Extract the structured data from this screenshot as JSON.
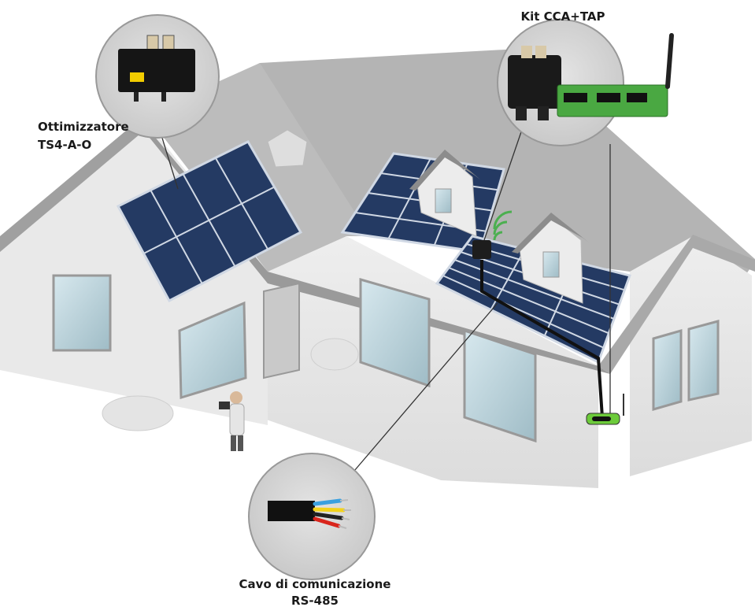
{
  "labels": {
    "kit": "Kit CCA+TAP",
    "optimizer": [
      "Ottimizzatore",
      "TS4-A-O"
    ],
    "cable": [
      "Cavo di comunicazione",
      "RS-485"
    ]
  }
}
